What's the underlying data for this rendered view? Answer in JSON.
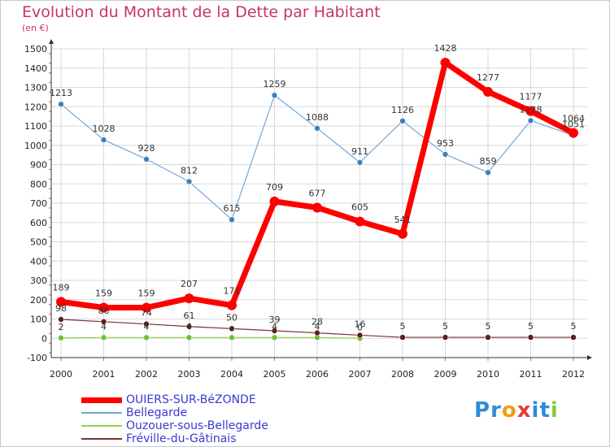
{
  "chart_data": {
    "type": "line",
    "title": "Evolution du Montant de la Dette par Habitant",
    "subtitle": "(en €)",
    "xlabel": "",
    "ylabel": "",
    "x": [
      "2000",
      "2001",
      "2002",
      "2003",
      "2004",
      "2005",
      "2006",
      "2007",
      "2008",
      "2009",
      "2010",
      "2011",
      "2012"
    ],
    "yticks": [
      "-100",
      "0",
      "100",
      "200",
      "300",
      "400",
      "500",
      "600",
      "700",
      "800",
      "900",
      "1000",
      "1100",
      "1200",
      "1300",
      "1400",
      "1500"
    ],
    "ylim": [
      -100,
      1500
    ],
    "grid": true,
    "legend_position": "bottom-left",
    "series": [
      {
        "name": "OUIERS-SUR-BéZONDE",
        "color": "#ff0000",
        "values": [
          189,
          159,
          159,
          207,
          171,
          709,
          677,
          605,
          541,
          1428,
          1277,
          1177,
          1064
        ],
        "labels": [
          "189",
          "159",
          "159",
          "207",
          "171",
          "709",
          "677",
          "605",
          "541",
          "1428",
          "1277",
          "1177",
          "1064"
        ]
      },
      {
        "name": "Bellegarde",
        "color": "#6fa8dc",
        "values": [
          1213,
          1028,
          928,
          812,
          615,
          1259,
          1088,
          911,
          1126,
          953,
          859,
          1128,
          1051
        ],
        "labels": [
          "1213",
          "1028",
          "928",
          "812",
          "615",
          "1259",
          "1088",
          "911",
          "1126",
          "953",
          "859",
          "1128",
          "1051"
        ]
      },
      {
        "name": "Ouzouer-sous-Bellegarde",
        "color": "#8fd14f",
        "values": [
          2,
          4,
          4,
          4,
          4,
          4,
          4,
          0,
          null,
          null,
          null,
          null,
          null
        ],
        "labels": [
          "2",
          "4",
          "4",
          "4",
          "",
          "4",
          "4",
          "0",
          "",
          "",
          "",
          "",
          ""
        ]
      },
      {
        "name": "Fréville-du-Gâtinais",
        "color": "#7a2f2f",
        "values": [
          98,
          86,
          74,
          61,
          50,
          39,
          28,
          16,
          5,
          5,
          5,
          5,
          5
        ],
        "labels": [
          "98",
          "86",
          "74",
          "61",
          "50",
          "39",
          "28",
          "16",
          "5",
          "5",
          "5",
          "5",
          "5"
        ]
      }
    ]
  },
  "logo": {
    "text": "Proxiti",
    "letters": [
      {
        "ch": "P",
        "color": "#2e8bd6"
      },
      {
        "ch": "r",
        "color": "#2e8bd6"
      },
      {
        "ch": "o",
        "color": "#f39c12"
      },
      {
        "ch": "x",
        "color": "#e23b3b"
      },
      {
        "ch": "i",
        "color": "#2e8bd6"
      },
      {
        "ch": "t",
        "color": "#2e8bd6"
      },
      {
        "ch": "i",
        "color": "#8cc63f"
      }
    ]
  }
}
